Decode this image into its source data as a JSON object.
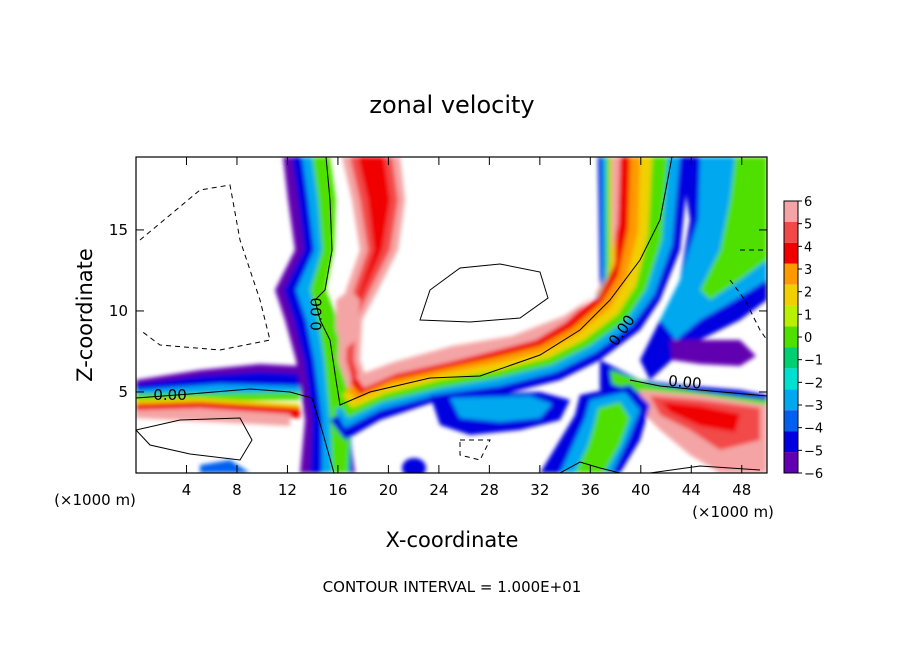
{
  "chart_data": {
    "type": "heatmap",
    "title": "zonal velocity",
    "xlabel": "X-coordinate",
    "ylabel": "Z-coordinate",
    "x_unit_left": "(×1000 m)",
    "x_unit_right": "(×1000 m)",
    "xlim": [
      0,
      50
    ],
    "ylim": [
      0,
      19.5
    ],
    "xticks": [
      4,
      8,
      12,
      16,
      20,
      24,
      28,
      32,
      36,
      40,
      44,
      48
    ],
    "yticks": [
      5,
      10,
      15
    ],
    "colorbar": {
      "levels": [
        "6",
        "5",
        "4",
        "3",
        "2",
        "1",
        "0",
        "−1",
        "−2",
        "−3",
        "−4",
        "−5",
        "−6"
      ],
      "colors": [
        "#f4a4a4",
        "#f24848",
        "#f00000",
        "#ff9900",
        "#f0d000",
        "#b8f000",
        "#50e000",
        "#00d070",
        "#00e0d0",
        "#00a8f0",
        "#0060f0",
        "#0000e0",
        "#6000b0"
      ]
    },
    "contour_labels": [
      {
        "text": "0.00",
        "x": 2.7,
        "z": 4.8,
        "rotate": 0
      },
      {
        "text": "0.00",
        "x": 14.3,
        "z": 9.8,
        "rotate": -90
      },
      {
        "text": "0.00",
        "x": 38.5,
        "z": 8.8,
        "rotate": -55
      },
      {
        "text": "0.00",
        "x": 43.5,
        "z": 5.6,
        "rotate": 5
      }
    ],
    "footer": "CONTOUR INTERVAL = 1.000E+01"
  }
}
